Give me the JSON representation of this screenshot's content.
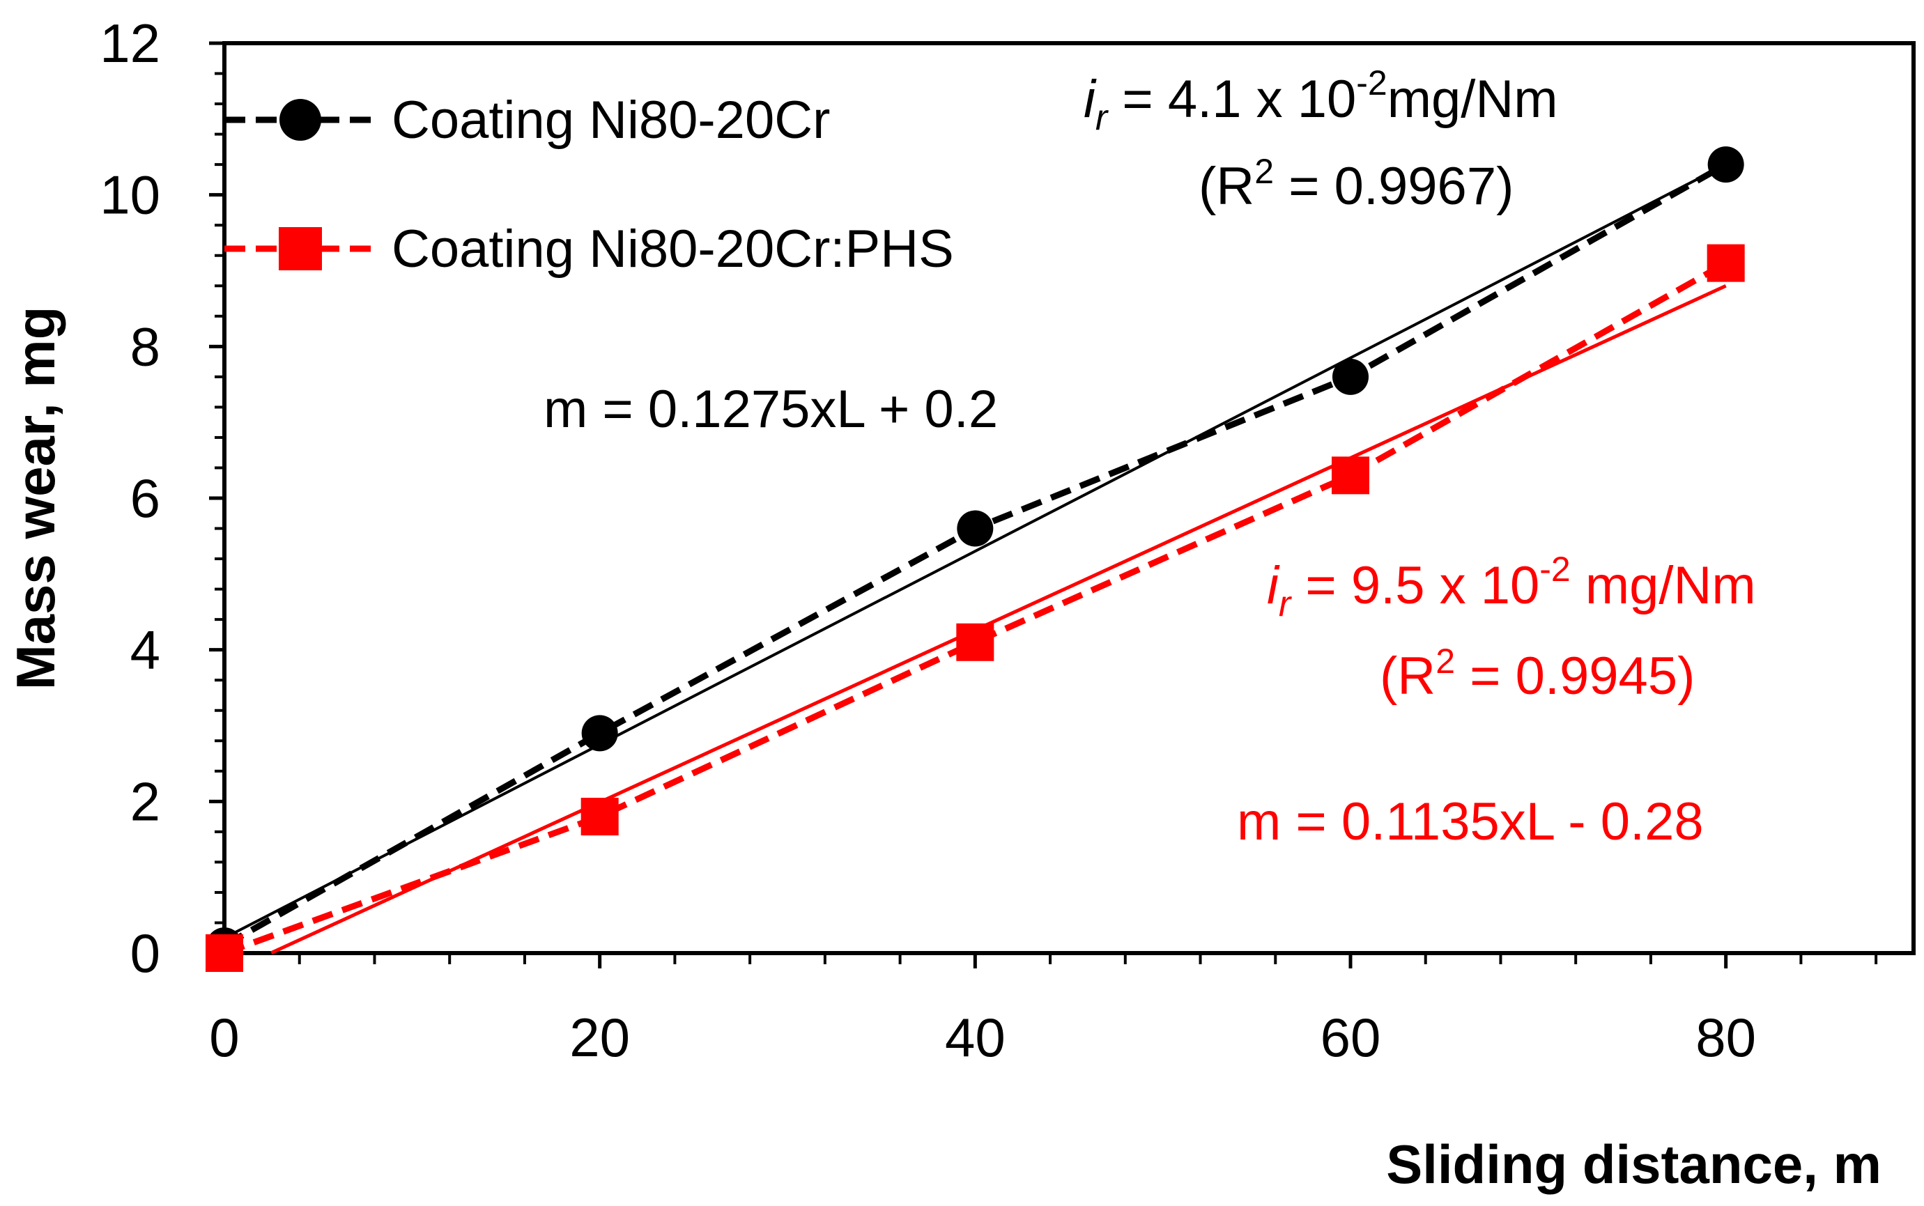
{
  "chart_data": {
    "type": "line",
    "title": "",
    "xlabel": "Sliding distance, m",
    "ylabel": "Mass wear, mg",
    "xlim": [
      0,
      90
    ],
    "ylim": [
      0,
      12
    ],
    "x_ticks": [
      0,
      20,
      40,
      60,
      80
    ],
    "y_ticks": [
      0,
      2,
      4,
      6,
      8,
      10,
      12
    ],
    "x_minor_step": 4,
    "y_minor_step": 0.4,
    "grid": false,
    "legend_position": "top-left",
    "series": [
      {
        "name": "Coating Ni80-20Cr",
        "color": "#000000",
        "marker": "circle",
        "x": [
          0,
          20,
          40,
          60,
          80
        ],
        "values": [
          0.1,
          2.9,
          5.6,
          7.6,
          10.4
        ],
        "trend": {
          "slope": 0.1275,
          "intercept": 0.2,
          "x_range": [
            0,
            80
          ]
        }
      },
      {
        "name": "Coating Ni80-20Cr:PHS",
        "color": "#ff0000",
        "marker": "square",
        "x": [
          0,
          20,
          40,
          60,
          80
        ],
        "values": [
          0.0,
          1.8,
          4.1,
          6.3,
          9.1
        ],
        "trend": {
          "slope": 0.1135,
          "intercept": -0.28,
          "x_range": [
            2.5,
            80
          ]
        }
      }
    ],
    "annotations": {
      "black_rate": {
        "i": "i",
        "sub": "r",
        "text": " = 4.1 x 10",
        "sup": "-2",
        "unit": "mg/Nm"
      },
      "black_r2": {
        "pre": "(R",
        "sup": "2",
        "post": " = 0.9967)"
      },
      "black_eq": "m = 0.1275xL + 0.2",
      "red_rate": {
        "i": "i",
        "sub": "r",
        "text": " = 9.5 x 10",
        "sup": "-2",
        "unit": " mg/Nm"
      },
      "red_r2": {
        "pre": "(R",
        "sup": "2",
        "post": " = 0.9945)"
      },
      "red_eq": "m = 0.1135xL - 0.28"
    }
  }
}
